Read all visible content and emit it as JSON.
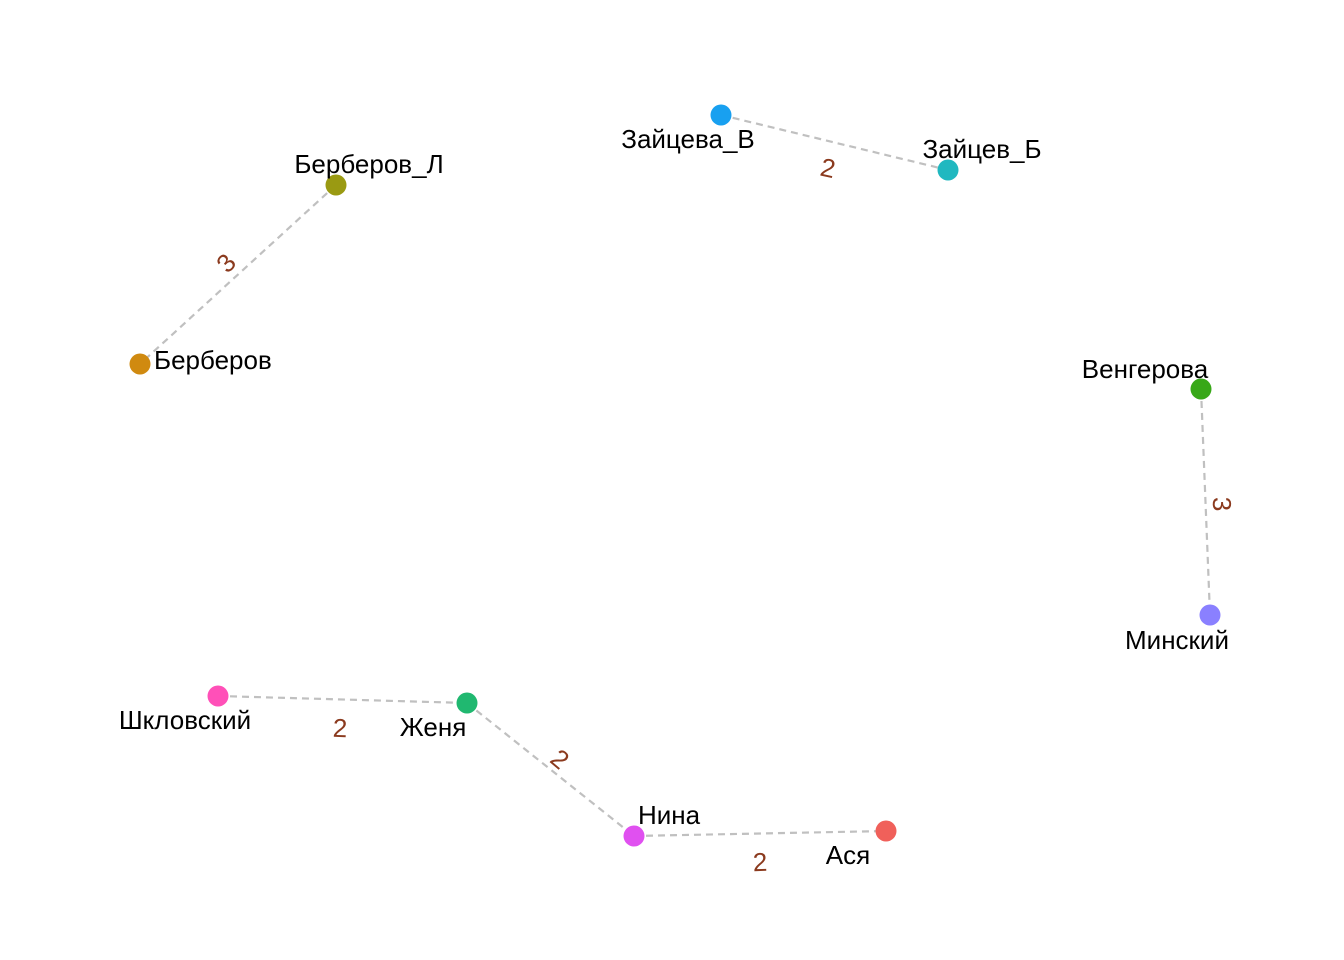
{
  "nodes": [
    {
      "id": "asya",
      "label": "Ася",
      "color": "#f0605a"
    },
    {
      "id": "berberov",
      "label": "Берберов",
      "color": "#d08a10"
    },
    {
      "id": "berberov_l",
      "label": "Берберов_Л",
      "color": "#9a9a12"
    },
    {
      "id": "vengerova",
      "label": "Венгерова",
      "color": "#38a818"
    },
    {
      "id": "zhenya",
      "label": "Женя",
      "color": "#20b870"
    },
    {
      "id": "zaytsev_b",
      "label": "Зайцев_Б",
      "color": "#20b8c0"
    },
    {
      "id": "zaytseva_v",
      "label": "Зайцева_В",
      "color": "#18a0f0"
    },
    {
      "id": "minsky",
      "label": "Минский",
      "color": "#8a80ff"
    },
    {
      "id": "nina",
      "label": "Нина",
      "color": "#e050f0"
    },
    {
      "id": "shklovsky",
      "label": "Шкловский",
      "color": "#ff50b8"
    }
  ],
  "edges": [
    {
      "source": "zaytseva_v",
      "target": "zaytsev_b",
      "weight": "2"
    },
    {
      "source": "berberov_l",
      "target": "berberov",
      "weight": "3"
    },
    {
      "source": "vengerova",
      "target": "minsky",
      "weight": "3"
    },
    {
      "source": "shklovsky",
      "target": "zhenya",
      "weight": "2"
    },
    {
      "source": "zhenya",
      "target": "nina",
      "weight": "2"
    },
    {
      "source": "nina",
      "target": "asya",
      "weight": "2"
    }
  ]
}
